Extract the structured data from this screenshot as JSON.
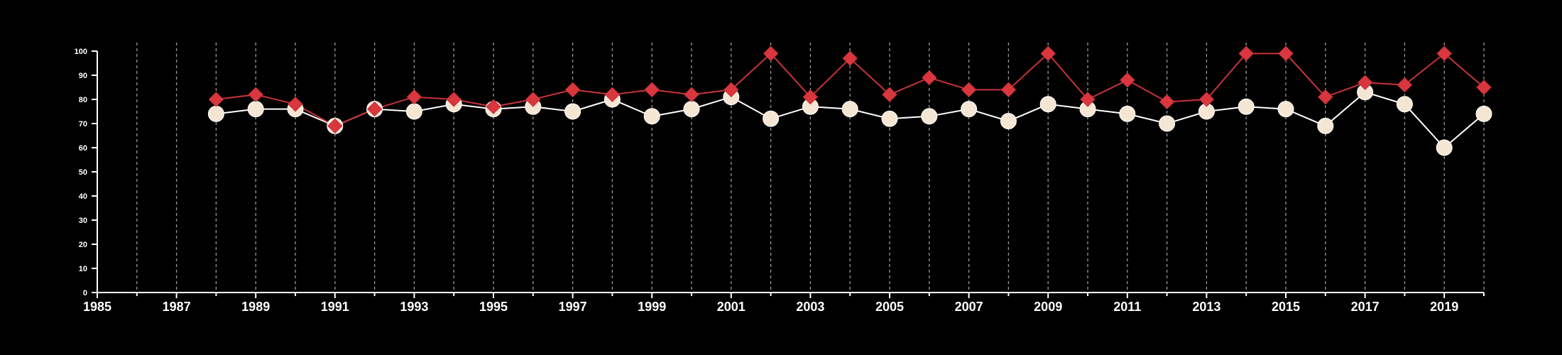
{
  "chart_data": {
    "type": "line",
    "title": "",
    "xlabel": "",
    "ylabel": "",
    "xlim": [
      1985,
      2020
    ],
    "ylim": [
      0,
      100
    ],
    "x_ticks": [
      1985,
      1987,
      1989,
      1991,
      1993,
      1995,
      1997,
      1999,
      2001,
      2003,
      2005,
      2007,
      2009,
      2011,
      2013,
      2015,
      2017,
      2019
    ],
    "y_ticks": [
      0,
      10,
      20,
      30,
      40,
      50,
      60,
      70,
      80,
      90,
      100
    ],
    "grid": "vertical dashed lines at each year",
    "legend": "none",
    "x": [
      1988,
      1989,
      1990,
      1991,
      1992,
      1993,
      1994,
      1995,
      1996,
      1997,
      1998,
      1999,
      2000,
      2001,
      2002,
      2003,
      2004,
      2005,
      2006,
      2007,
      2008,
      2009,
      2010,
      2011,
      2012,
      2013,
      2014,
      2015,
      2016,
      2017,
      2018,
      2019,
      2020
    ],
    "series": [
      {
        "color": "#ffffff",
        "fill": "#f5e6d3",
        "marker": "circle",
        "values": [
          74,
          76,
          76,
          69,
          76,
          75,
          78,
          76,
          77,
          75,
          80,
          73,
          76,
          81,
          72,
          77,
          76,
          72,
          73,
          76,
          71,
          78,
          76,
          74,
          70,
          75,
          77,
          76,
          69,
          83,
          78,
          60,
          74
        ]
      },
      {
        "color": "#c8323a",
        "fill": "#d9363e",
        "marker": "diamond",
        "values": [
          80,
          82,
          78,
          69,
          76,
          81,
          80,
          77,
          80,
          84,
          82,
          84,
          82,
          84,
          99,
          81,
          97,
          82,
          89,
          84,
          84,
          99,
          80,
          88,
          79,
          80,
          99,
          99,
          81,
          87,
          86,
          99,
          85
        ]
      }
    ]
  }
}
